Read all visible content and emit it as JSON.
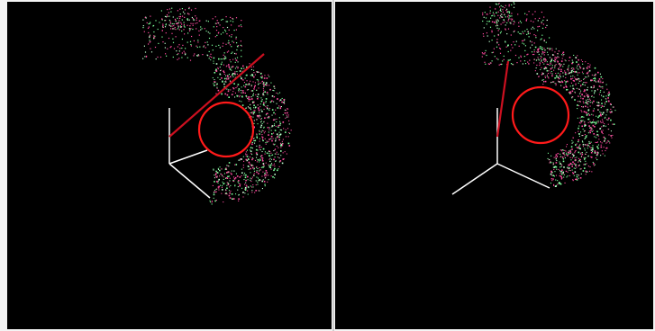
{
  "window": {
    "title": ""
  },
  "views": [
    {
      "id": "left",
      "name": "3d-viewport-left",
      "camera_angle": "left-oblique",
      "point_cloud": {
        "shape": "crescent",
        "colors": [
          "#ff4aa0",
          "#7dff9a",
          "#c0ffd0"
        ]
      },
      "axes": {
        "color": "#ffffff",
        "count": 3
      },
      "overlay_circle": {
        "color": "#ff1a1a"
      },
      "overlay_line": {
        "color": "#cc1020"
      }
    },
    {
      "id": "right",
      "name": "3d-viewport-right",
      "camera_angle": "right-oblique",
      "point_cloud": {
        "shape": "crescent",
        "colors": [
          "#ff4aa0",
          "#7dff9a",
          "#c0ffd0"
        ]
      },
      "axes": {
        "color": "#ffffff",
        "count": 3
      },
      "overlay_circle": {
        "color": "#ff1a1a"
      },
      "overlay_line": {
        "color": "#cc1020"
      }
    }
  ],
  "colors": {
    "background": "#000000",
    "divider": "#cfcfcf"
  }
}
